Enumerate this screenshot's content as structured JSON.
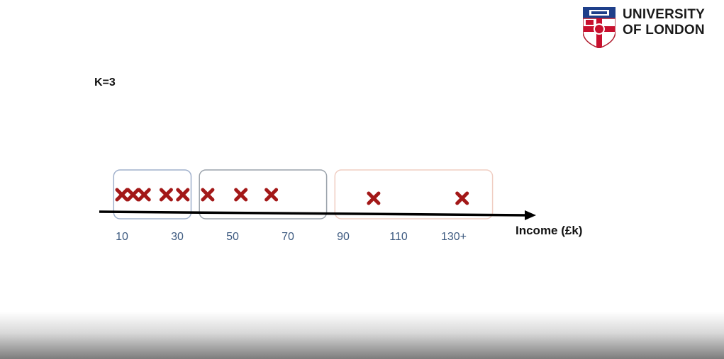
{
  "slide": {
    "k_label": "K=3",
    "logo": {
      "line1": "UNIVERSITY",
      "line2": "OF LONDON",
      "crest_icon": "university-of-london-crest-icon"
    }
  },
  "chart_data": {
    "type": "scatter",
    "xlabel": "Income (£k)",
    "ylabel": "",
    "title": "",
    "tick_values": [
      10,
      30,
      50,
      70,
      90,
      110,
      130
    ],
    "tick_labels": [
      "10",
      "30",
      "50",
      "70",
      "90",
      "110",
      "130+"
    ],
    "points": [
      10,
      14,
      18,
      26,
      32,
      41,
      53,
      64,
      101,
      133
    ],
    "clusters": [
      {
        "range": [
          7,
          35
        ],
        "members": [
          10,
          14,
          18,
          26,
          32
        ]
      },
      {
        "range": [
          38,
          84
        ],
        "members": [
          41,
          53,
          64
        ]
      },
      {
        "range": [
          87,
          144
        ],
        "members": [
          101,
          133
        ]
      }
    ],
    "marker": "x",
    "colors": {
      "marker": "#a31818",
      "cluster_1_border": "#9fb0cc",
      "cluster_2_border": "#9aa2ab",
      "cluster_3_border": "#f0cdc2",
      "axis": "#000000"
    }
  }
}
